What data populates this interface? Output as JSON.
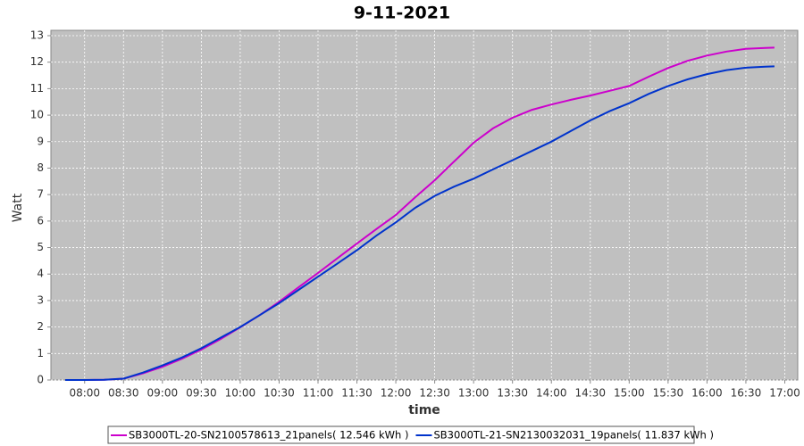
{
  "chart_data": {
    "type": "line",
    "title": "9-11-2021",
    "x_label": "time",
    "y_label": "Watt",
    "x": [
      "07:45",
      "08:00",
      "08:15",
      "08:30",
      "08:45",
      "09:00",
      "09:15",
      "09:30",
      "09:45",
      "10:00",
      "10:15",
      "10:30",
      "10:45",
      "11:00",
      "11:15",
      "11:30",
      "11:45",
      "12:00",
      "12:15",
      "12:30",
      "12:45",
      "13:00",
      "13:15",
      "13:30",
      "13:45",
      "14:00",
      "14:15",
      "14:30",
      "14:45",
      "15:00",
      "15:15",
      "15:30",
      "15:45",
      "16:00",
      "16:15",
      "16:30",
      "16:45",
      "16:52"
    ],
    "series": [
      {
        "name": "SB3000TL-20-SN2100578613_21panels( 12.546 kWh )",
        "color": "#cc00cc",
        "values": [
          0,
          0,
          0.01,
          0.05,
          0.25,
          0.5,
          0.8,
          1.15,
          1.55,
          1.99,
          2.45,
          2.95,
          3.5,
          4.04,
          4.6,
          5.15,
          5.7,
          6.23,
          6.9,
          7.54,
          8.25,
          8.96,
          9.5,
          9.9,
          10.2,
          10.4,
          10.58,
          10.74,
          10.92,
          11.1,
          11.45,
          11.78,
          12.05,
          12.25,
          12.4,
          12.5,
          12.54,
          12.55
        ]
      },
      {
        "name": "SB3000TL-21-SN2130032031_19panels( 11.837 kWh )",
        "color": "#0033cc",
        "values": [
          0,
          0,
          0.01,
          0.05,
          0.28,
          0.55,
          0.85,
          1.2,
          1.6,
          2.0,
          2.45,
          2.9,
          3.4,
          3.9,
          4.4,
          4.9,
          5.45,
          5.95,
          6.5,
          6.95,
          7.3,
          7.6,
          7.95,
          8.3,
          8.65,
          9.0,
          9.4,
          9.8,
          10.15,
          10.45,
          10.8,
          11.1,
          11.35,
          11.55,
          11.7,
          11.79,
          11.83,
          11.84
        ]
      }
    ],
    "xlim": [
      "07:34",
      "17:10"
    ],
    "xticks": [
      "08:00",
      "08:30",
      "09:00",
      "09:30",
      "10:00",
      "10:30",
      "11:00",
      "11:30",
      "12:00",
      "12:30",
      "13:00",
      "13:30",
      "14:00",
      "14:30",
      "15:00",
      "15:30",
      "16:00",
      "16:30",
      "17:00"
    ],
    "ylim": [
      0,
      13
    ],
    "yticks": [
      0,
      1,
      2,
      3,
      4,
      5,
      6,
      7,
      8,
      9,
      10,
      11,
      12,
      13
    ],
    "grid": true,
    "legend": "bottom"
  }
}
